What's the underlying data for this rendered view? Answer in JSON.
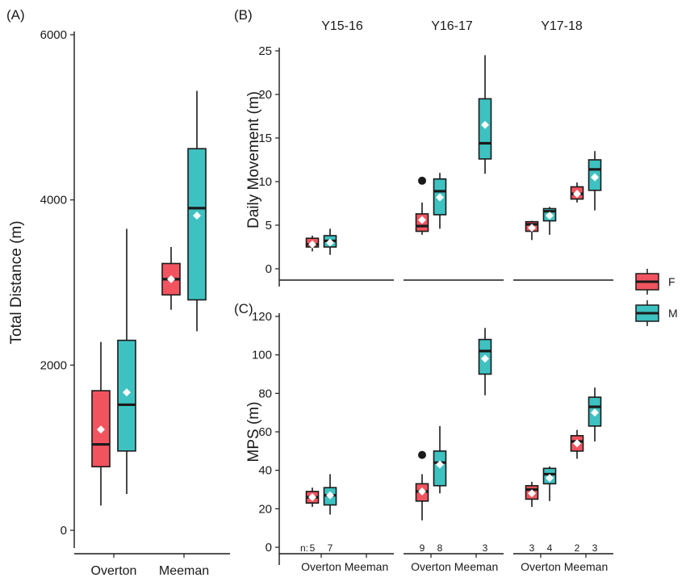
{
  "colors": {
    "F": "#F2545F",
    "M": "#3EC1C1",
    "stroke": "#1a1a1a",
    "mean": "#ffffff"
  },
  "legend": [
    {
      "key": "F",
      "label": "F"
    },
    {
      "key": "M",
      "label": "M"
    }
  ],
  "chart_data": [
    {
      "panel": "(A)",
      "type": "boxplot",
      "ylabel": "Total Distance (m)",
      "ylim": [
        0,
        6000
      ],
      "yticks": [
        0,
        2000,
        4000,
        6000
      ],
      "categories": [
        "Overton",
        "Meeman"
      ],
      "boxes": [
        {
          "site": "Overton",
          "sex": "F",
          "min": 300,
          "q1": 770,
          "median": 1040,
          "q3": 1690,
          "max": 2280,
          "mean": 1220
        },
        {
          "site": "Overton",
          "sex": "M",
          "min": 440,
          "q1": 960,
          "median": 1520,
          "q3": 2300,
          "max": 3650,
          "mean": 1670
        },
        {
          "site": "Meeman",
          "sex": "F",
          "min": 2670,
          "q1": 2850,
          "median": 3040,
          "q3": 3230,
          "max": 3430,
          "mean": 3040
        },
        {
          "site": "Meeman",
          "sex": "M",
          "min": 2410,
          "q1": 2790,
          "median": 3900,
          "q3": 4620,
          "max": 5320,
          "mean": 3810
        }
      ]
    },
    {
      "panel": "(B)",
      "type": "boxplot",
      "ylabel": "Daily Movement (m)",
      "ylim": [
        0,
        25
      ],
      "yticks": [
        0,
        5,
        10,
        15,
        20,
        25
      ],
      "facets": [
        "Y15-16",
        "Y16-17",
        "Y17-18"
      ],
      "boxes": [
        {
          "facet": "Y15-16",
          "site": "Overton",
          "sex": "F",
          "min": 2.0,
          "q1": 2.5,
          "median": 2.8,
          "q3": 3.5,
          "max": 3.8,
          "mean": 2.8
        },
        {
          "facet": "Y15-16",
          "site": "Overton",
          "sex": "M",
          "min": 1.6,
          "q1": 2.5,
          "median": 3.2,
          "q3": 3.8,
          "max": 4.6,
          "mean": 3.0
        },
        {
          "facet": "Y16-17",
          "site": "Overton",
          "sex": "F",
          "min": 3.9,
          "q1": 4.3,
          "median": 4.9,
          "q3": 6.3,
          "max": 7.6,
          "mean": 5.6,
          "outliers": [
            10.1
          ]
        },
        {
          "facet": "Y16-17",
          "site": "Overton",
          "sex": "M",
          "min": 4.6,
          "q1": 6.2,
          "median": 8.9,
          "q3": 10.3,
          "max": 11.0,
          "mean": 8.2
        },
        {
          "facet": "Y16-17",
          "site": "Meeman",
          "sex": "M",
          "min": 10.9,
          "q1": 12.6,
          "median": 14.4,
          "q3": 19.5,
          "max": 24.5,
          "mean": 16.5
        },
        {
          "facet": "Y17-18",
          "site": "Overton",
          "sex": "F",
          "min": 3.3,
          "q1": 4.3,
          "median": 5.1,
          "q3": 5.4,
          "max": 5.5,
          "mean": 4.7
        },
        {
          "facet": "Y17-18",
          "site": "Overton",
          "sex": "M",
          "min": 3.9,
          "q1": 5.5,
          "median": 6.6,
          "q3": 6.9,
          "max": 7.1,
          "mean": 6.1
        },
        {
          "facet": "Y17-18",
          "site": "Meeman",
          "sex": "F",
          "min": 7.6,
          "q1": 8.0,
          "median": 8.6,
          "q3": 9.4,
          "max": 9.9,
          "mean": 8.6
        },
        {
          "facet": "Y17-18",
          "site": "Meeman",
          "sex": "M",
          "min": 6.7,
          "q1": 9.0,
          "median": 11.4,
          "q3": 12.5,
          "max": 13.5,
          "mean": 10.5
        }
      ]
    },
    {
      "panel": "(C)",
      "type": "boxplot",
      "ylabel": "MPS (m)",
      "ylim": [
        0,
        120
      ],
      "yticks": [
        0,
        20,
        40,
        60,
        80,
        100,
        120
      ],
      "facets": [
        "Y15-16",
        "Y16-17",
        "Y17-18"
      ],
      "categories": [
        "Overton",
        "Meeman"
      ],
      "n_prefix": "n:",
      "n_labels": [
        {
          "facet": "Y15-16",
          "site": "Overton",
          "sex": "F",
          "n": "5"
        },
        {
          "facet": "Y15-16",
          "site": "Overton",
          "sex": "M",
          "n": "7"
        },
        {
          "facet": "Y16-17",
          "site": "Overton",
          "sex": "F",
          "n": "9"
        },
        {
          "facet": "Y16-17",
          "site": "Overton",
          "sex": "M",
          "n": "8"
        },
        {
          "facet": "Y16-17",
          "site": "Meeman",
          "sex": "M",
          "n": "3"
        },
        {
          "facet": "Y17-18",
          "site": "Overton",
          "sex": "F",
          "n": "3"
        },
        {
          "facet": "Y17-18",
          "site": "Overton",
          "sex": "M",
          "n": "4"
        },
        {
          "facet": "Y17-18",
          "site": "Meeman",
          "sex": "F",
          "n": "2"
        },
        {
          "facet": "Y17-18",
          "site": "Meeman",
          "sex": "M",
          "n": "3"
        }
      ],
      "boxes": [
        {
          "facet": "Y15-16",
          "site": "Overton",
          "sex": "F",
          "min": 21,
          "q1": 23,
          "median": 26,
          "q3": 29,
          "max": 31,
          "mean": 26
        },
        {
          "facet": "Y15-16",
          "site": "Overton",
          "sex": "M",
          "min": 17,
          "q1": 22,
          "median": 27,
          "q3": 31,
          "max": 38,
          "mean": 27
        },
        {
          "facet": "Y16-17",
          "site": "Overton",
          "sex": "F",
          "min": 14,
          "q1": 24,
          "median": 29,
          "q3": 33,
          "max": 38,
          "mean": 29,
          "outliers": [
            48
          ]
        },
        {
          "facet": "Y16-17",
          "site": "Overton",
          "sex": "M",
          "min": 28,
          "q1": 32,
          "median": 44,
          "q3": 50,
          "max": 63,
          "mean": 43
        },
        {
          "facet": "Y16-17",
          "site": "Meeman",
          "sex": "M",
          "min": 79,
          "q1": 90,
          "median": 102,
          "q3": 108,
          "max": 114,
          "mean": 98
        },
        {
          "facet": "Y17-18",
          "site": "Overton",
          "sex": "F",
          "min": 21,
          "q1": 25,
          "median": 30,
          "q3": 32,
          "max": 34,
          "mean": 28
        },
        {
          "facet": "Y17-18",
          "site": "Overton",
          "sex": "M",
          "min": 24,
          "q1": 33,
          "median": 38,
          "q3": 41,
          "max": 42,
          "mean": 36
        },
        {
          "facet": "Y17-18",
          "site": "Meeman",
          "sex": "F",
          "min": 46,
          "q1": 50,
          "median": 55,
          "q3": 58,
          "max": 61,
          "mean": 54
        },
        {
          "facet": "Y17-18",
          "site": "Meeman",
          "sex": "M",
          "min": 55,
          "q1": 63,
          "median": 73,
          "q3": 78,
          "max": 83,
          "mean": 70
        }
      ]
    }
  ]
}
